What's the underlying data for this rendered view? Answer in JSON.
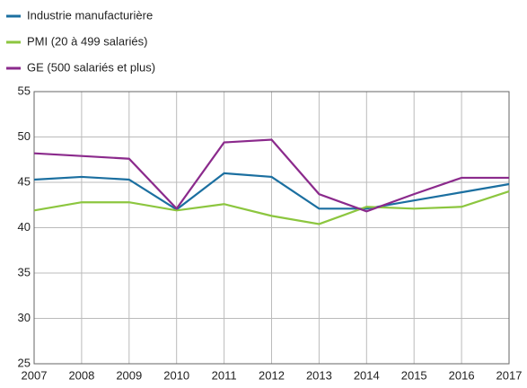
{
  "chart_data": {
    "type": "line",
    "x": [
      2007,
      2008,
      2009,
      2010,
      2011,
      2012,
      2013,
      2014,
      2015,
      2016,
      2017
    ],
    "series": [
      {
        "name": "Industrie manufacturière",
        "color": "#1b6fa0",
        "values": [
          45.3,
          45.6,
          45.3,
          42.0,
          46.0,
          45.6,
          42.1,
          42.1,
          43.0,
          43.9,
          44.8
        ]
      },
      {
        "name": "PMI (20 à 499 salariés)",
        "color": "#8cc63f",
        "values": [
          41.9,
          42.8,
          42.8,
          41.9,
          42.6,
          41.3,
          40.4,
          42.3,
          42.1,
          42.3,
          44.0
        ]
      },
      {
        "name": "GE (500 salariés et plus)",
        "color": "#8b2a8c",
        "values": [
          48.2,
          47.9,
          47.6,
          42.1,
          49.4,
          49.7,
          43.7,
          41.8,
          43.7,
          45.5,
          45.5
        ]
      }
    ],
    "xlim": [
      2007,
      2017
    ],
    "xticks": [
      2007,
      2008,
      2009,
      2010,
      2011,
      2012,
      2013,
      2014,
      2015,
      2016,
      2017
    ],
    "ylim": [
      25,
      55
    ],
    "yticks": [
      25,
      30,
      35,
      40,
      45,
      50,
      55
    ],
    "grid": true,
    "legend": "top-left"
  }
}
